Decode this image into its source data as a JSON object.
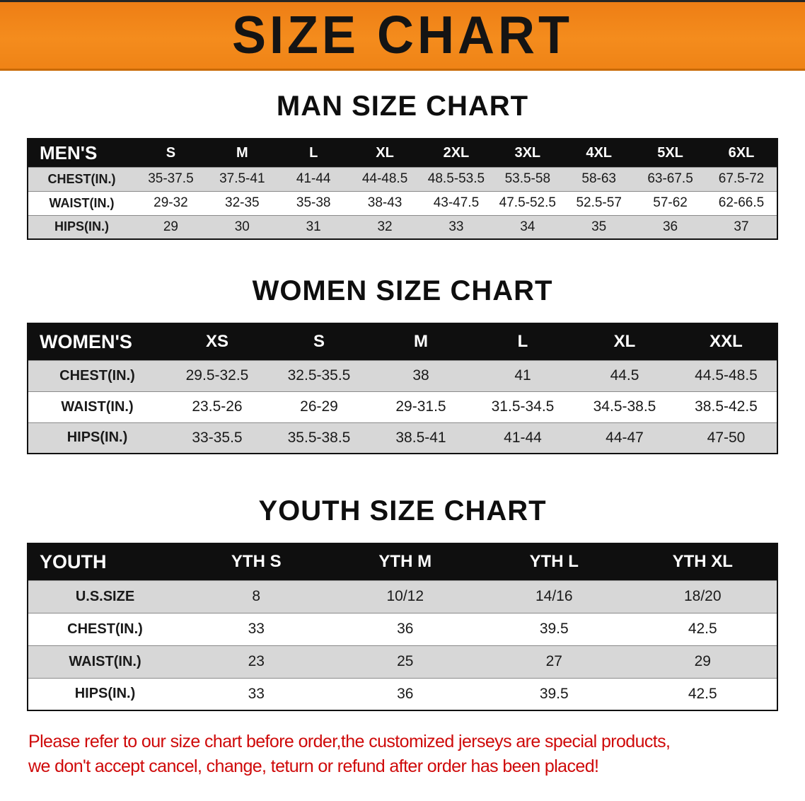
{
  "banner": {
    "title": "SIZE CHART",
    "bg_color": "#f08519",
    "text_color": "#141414"
  },
  "sections": [
    {
      "heading": "MAN SIZE CHART",
      "table": {
        "header_label": "MEN'S",
        "columns": [
          "S",
          "M",
          "L",
          "XL",
          "2XL",
          "3XL",
          "4XL",
          "5XL",
          "6XL"
        ],
        "rows": [
          {
            "label": "CHEST(IN.)",
            "values": [
              "35-37.5",
              "37.5-41",
              "41-44",
              "44-48.5",
              "48.5-53.5",
              "53.5-58",
              "58-63",
              "63-67.5",
              "67.5-72"
            ]
          },
          {
            "label": "WAIST(IN.)",
            "values": [
              "29-32",
              "32-35",
              "35-38",
              "38-43",
              "43-47.5",
              "47.5-52.5",
              "52.5-57",
              "57-62",
              "62-66.5"
            ]
          },
          {
            "label": "HIPS(IN.)",
            "values": [
              "29",
              "30",
              "31",
              "32",
              "33",
              "34",
              "35",
              "36",
              "37"
            ]
          }
        ]
      }
    },
    {
      "heading": "WOMEN SIZE CHART",
      "table": {
        "header_label": "WOMEN'S",
        "columns": [
          "XS",
          "S",
          "M",
          "L",
          "XL",
          "XXL"
        ],
        "rows": [
          {
            "label": "CHEST(IN.)",
            "values": [
              "29.5-32.5",
              "32.5-35.5",
              "38",
              "41",
              "44.5",
              "44.5-48.5"
            ]
          },
          {
            "label": "WAIST(IN.)",
            "values": [
              "23.5-26",
              "26-29",
              "29-31.5",
              "31.5-34.5",
              "34.5-38.5",
              "38.5-42.5"
            ]
          },
          {
            "label": "HIPS(IN.)",
            "values": [
              "33-35.5",
              "35.5-38.5",
              "38.5-41",
              "41-44",
              "44-47",
              "47-50"
            ]
          }
        ]
      }
    },
    {
      "heading": "YOUTH SIZE CHART",
      "table": {
        "header_label": "YOUTH",
        "columns": [
          "YTH S",
          "YTH M",
          "YTH L",
          "YTH XL"
        ],
        "rows": [
          {
            "label": "U.S.SIZE",
            "values": [
              "8",
              "10/12",
              "14/16",
              "18/20"
            ]
          },
          {
            "label": "CHEST(IN.)",
            "values": [
              "33",
              "36",
              "39.5",
              "42.5"
            ]
          },
          {
            "label": "WAIST(IN.)",
            "values": [
              "23",
              "25",
              "27",
              "29"
            ]
          },
          {
            "label": "HIPS(IN.)",
            "values": [
              "33",
              "36",
              "39.5",
              "42.5"
            ]
          }
        ]
      }
    }
  ],
  "footer": {
    "text_color": "#cf0a0a",
    "lines": [
      "Please refer to our size chart before order,the customized jerseys are special products,",
      "we don't accept cancel, change, teturn or refund after order has been placed!"
    ]
  }
}
